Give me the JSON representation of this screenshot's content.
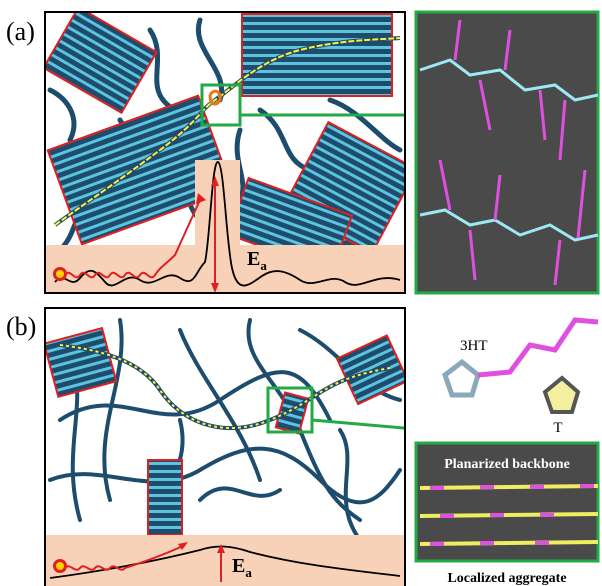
{
  "panels": [
    {
      "label": "(a)",
      "energy_label": "E",
      "energy_subscript": "a"
    },
    {
      "label": "(b)",
      "energy_label": "E",
      "energy_subscript": "a"
    }
  ],
  "legend": {
    "ring_3ht": "3HT",
    "ring_t": "T"
  },
  "inset": {
    "title": "Planarized backbone",
    "caption": "Localized aggregate"
  }
}
